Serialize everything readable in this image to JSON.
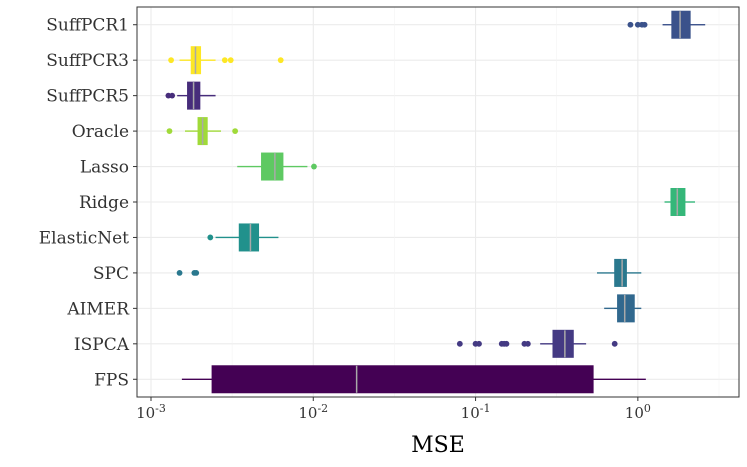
{
  "chart_data": {
    "type": "boxplot",
    "title": "",
    "xlabel": "MSE",
    "ylabel": "",
    "x_scale": "log10",
    "xlim": [
      0.00082,
      4.2
    ],
    "x_ticks": [
      {
        "value": 0.001,
        "base": "10",
        "exp": "-3"
      },
      {
        "value": 0.01,
        "base": "10",
        "exp": "-2"
      },
      {
        "value": 0.1,
        "base": "10",
        "exp": "-1"
      },
      {
        "value": 1,
        "base": "10",
        "exp": "0"
      }
    ],
    "grid": true,
    "categories": [
      "SuffPCR1",
      "SuffPCR3",
      "SuffPCR5",
      "Oracle",
      "Lasso",
      "Ridge",
      "ElasticNet",
      "SPC",
      "AIMER",
      "ISPCA",
      "FPS"
    ],
    "series": [
      {
        "name": "SuffPCR1",
        "color": "#3b528b",
        "whisker_low": 1.42,
        "q1": 1.62,
        "median": 1.82,
        "q3": 2.1,
        "whisker_high": 2.6,
        "outliers": [
          0.9,
          1.0,
          1.06,
          1.1
        ]
      },
      {
        "name": "SuffPCR3",
        "color": "#fde725",
        "whisker_low": 0.0015,
        "q1": 0.00177,
        "median": 0.00188,
        "q3": 0.00202,
        "whisker_high": 0.0025,
        "outliers": [
          0.00133,
          0.00285,
          0.0031,
          0.0063
        ]
      },
      {
        "name": "SuffPCR5",
        "color": "#472d7b",
        "whisker_low": 0.00145,
        "q1": 0.00168,
        "median": 0.00183,
        "q3": 0.002,
        "whisker_high": 0.0025,
        "outliers": [
          0.00128,
          0.00135
        ]
      },
      {
        "name": "Oracle",
        "color": "#a0da39",
        "whisker_low": 0.00162,
        "q1": 0.00195,
        "median": 0.00208,
        "q3": 0.00222,
        "whisker_high": 0.0027,
        "outliers": [
          0.0013,
          0.0033
        ]
      },
      {
        "name": "Lasso",
        "color": "#5ec962",
        "whisker_low": 0.0034,
        "q1": 0.0048,
        "median": 0.0058,
        "q3": 0.0065,
        "whisker_high": 0.0092,
        "outliers": [
          0.0101
        ]
      },
      {
        "name": "Ridge",
        "color": "#35b779",
        "whisker_low": 1.46,
        "q1": 1.6,
        "median": 1.75,
        "q3": 1.95,
        "whisker_high": 2.25,
        "outliers": []
      },
      {
        "name": "ElasticNet",
        "color": "#21918c",
        "whisker_low": 0.0025,
        "q1": 0.0035,
        "median": 0.0041,
        "q3": 0.0046,
        "whisker_high": 0.0061,
        "outliers": [
          0.00232
        ]
      },
      {
        "name": "SPC",
        "color": "#2a788e",
        "whisker_low": 0.56,
        "q1": 0.72,
        "median": 0.8,
        "q3": 0.85,
        "whisker_high": 1.05,
        "outliers": [
          0.0015,
          0.00185,
          0.0019
        ]
      },
      {
        "name": "AIMER",
        "color": "#31688e",
        "whisker_low": 0.62,
        "q1": 0.75,
        "median": 0.83,
        "q3": 0.95,
        "whisker_high": 1.05,
        "outliers": []
      },
      {
        "name": "ISPCA",
        "color": "#443a83",
        "whisker_low": 0.25,
        "q1": 0.3,
        "median": 0.355,
        "q3": 0.4,
        "whisker_high": 0.48,
        "outliers": [
          0.08,
          0.1,
          0.105,
          0.145,
          0.15,
          0.155,
          0.2,
          0.21,
          0.72
        ]
      },
      {
        "name": "FPS",
        "color": "#440154",
        "whisker_low": 0.00155,
        "q1": 0.00238,
        "median": 0.0185,
        "q3": 0.53,
        "whisker_high": 1.12,
        "outliers": []
      }
    ]
  }
}
